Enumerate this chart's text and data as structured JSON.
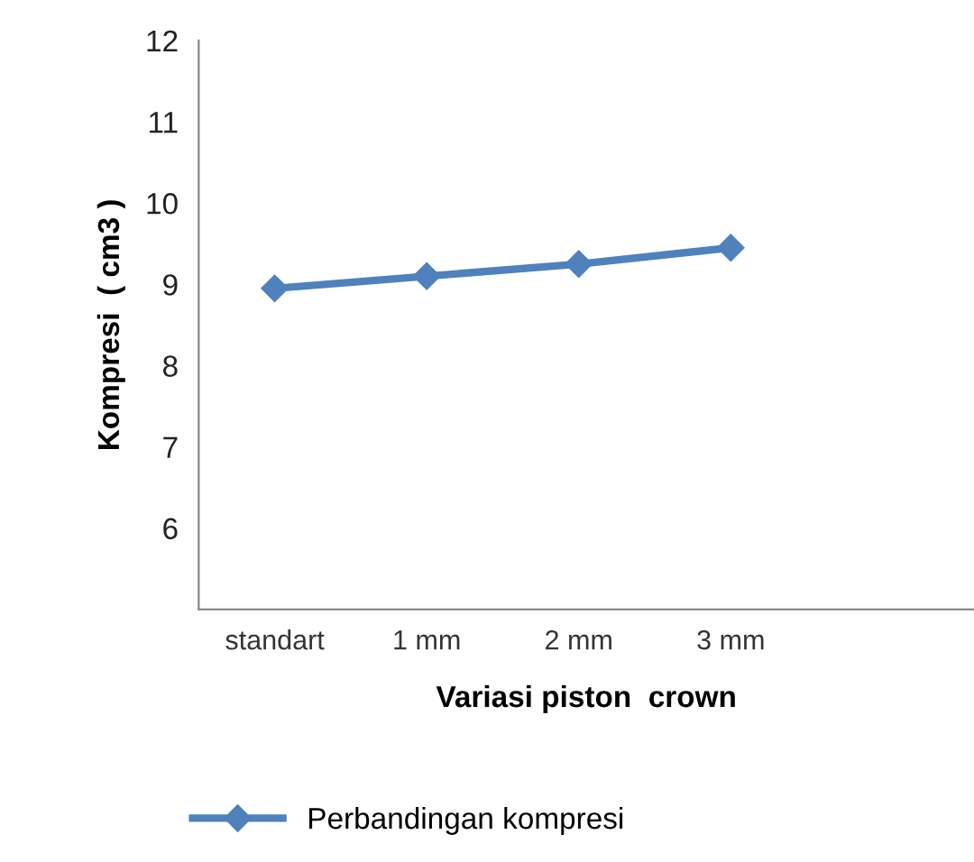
{
  "chart_data": {
    "type": "line",
    "xlabel": "Variasi piston  crown",
    "ylabel": "Kompresi  ( cm3 )",
    "categories": [
      "standart",
      "1 mm",
      "2 mm",
      "3 mm",
      null
    ],
    "series": [
      {
        "name": "Perbandingan kompresi",
        "color": "#4f81bd",
        "values": [
          8.95,
          9.1,
          9.25,
          9.45,
          null
        ]
      }
    ],
    "ylim": [
      5,
      12
    ],
    "yticks": [
      6,
      7,
      8,
      9,
      10,
      11,
      12
    ],
    "grid": false,
    "legend": "bottom",
    "marker": "diamond",
    "line_style": "solid"
  }
}
